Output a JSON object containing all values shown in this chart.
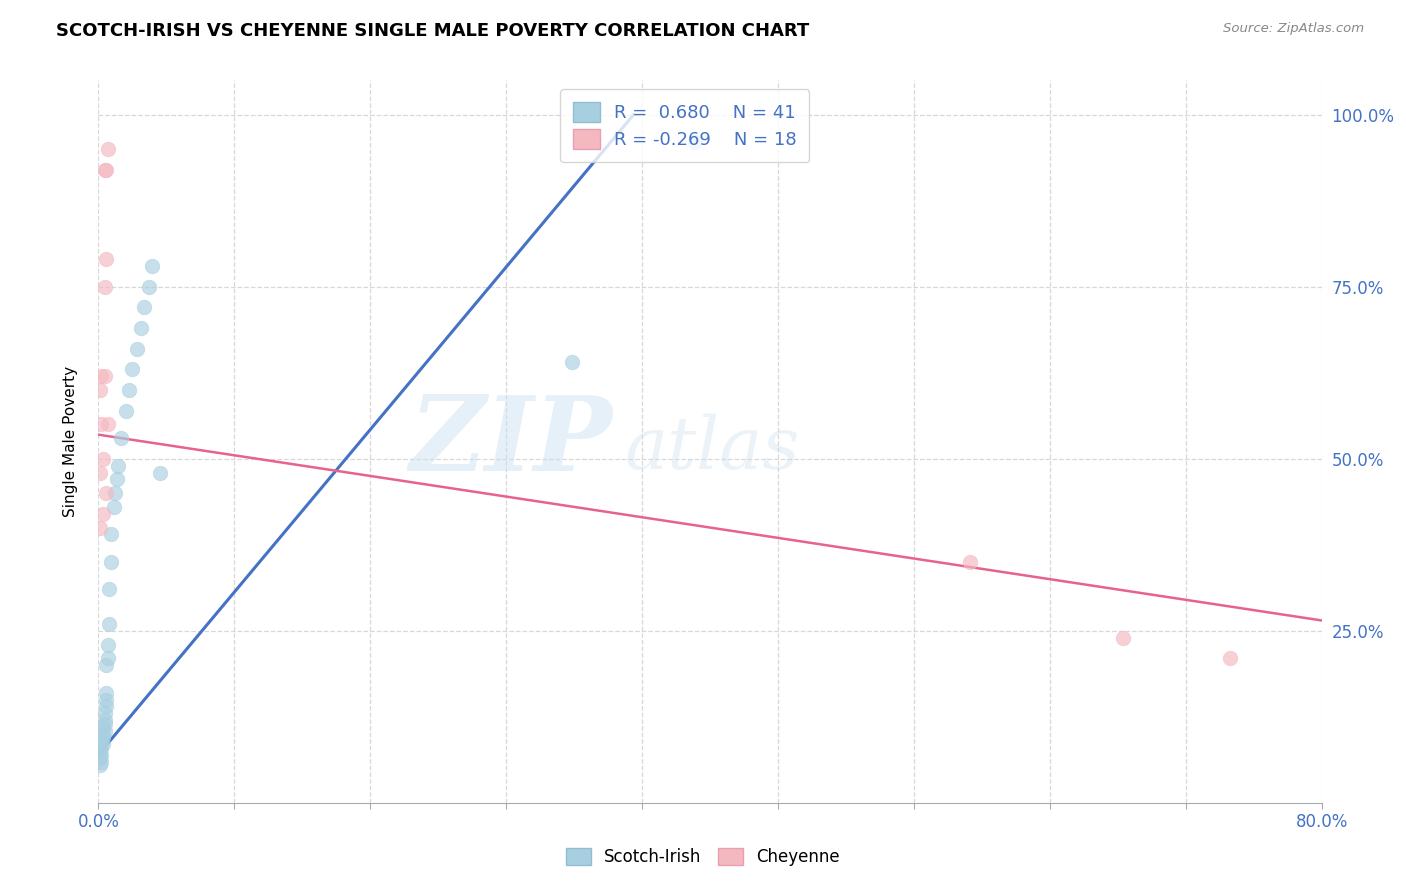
{
  "title": "SCOTCH-IRISH VS CHEYENNE SINGLE MALE POVERTY CORRELATION CHART",
  "source": "Source: ZipAtlas.com",
  "ylabel": "Single Male Poverty",
  "legend_scotch_irish": "Scotch-Irish",
  "legend_cheyenne": "Cheyenne",
  "r_scotch": " 0.680",
  "n_scotch": "41",
  "r_cheyenne": "-0.269",
  "n_cheyenne": "18",
  "scotch_irish_color": "#a8cfe0",
  "cheyenne_color": "#f4b8c1",
  "trend_scotch_color": "#4472c4",
  "trend_cheyenne_color": "#e8638c",
  "watermark_zip": "ZIP",
  "watermark_atlas": "atlas",
  "scotch_x": [
    0.001,
    0.001,
    0.001,
    0.002,
    0.002,
    0.002,
    0.002,
    0.003,
    0.003,
    0.003,
    0.003,
    0.004,
    0.004,
    0.004,
    0.004,
    0.005,
    0.005,
    0.005,
    0.005,
    0.006,
    0.006,
    0.007,
    0.007,
    0.008,
    0.008,
    0.01,
    0.011,
    0.012,
    0.013,
    0.015,
    0.018,
    0.02,
    0.022,
    0.025,
    0.028,
    0.03,
    0.033,
    0.035,
    0.04,
    0.31,
    0.39
  ],
  "scotch_y": [
    0.055,
    0.065,
    0.075,
    0.06,
    0.07,
    0.08,
    0.09,
    0.085,
    0.095,
    0.1,
    0.11,
    0.105,
    0.115,
    0.12,
    0.13,
    0.14,
    0.15,
    0.16,
    0.2,
    0.21,
    0.23,
    0.26,
    0.31,
    0.35,
    0.39,
    0.43,
    0.45,
    0.47,
    0.49,
    0.53,
    0.57,
    0.6,
    0.63,
    0.66,
    0.69,
    0.72,
    0.75,
    0.78,
    0.48,
    0.64,
    0.96
  ],
  "cheyenne_x": [
    0.001,
    0.001,
    0.001,
    0.002,
    0.002,
    0.003,
    0.003,
    0.004,
    0.004,
    0.004,
    0.005,
    0.005,
    0.005,
    0.006,
    0.006,
    0.57,
    0.67,
    0.74
  ],
  "cheyenne_y": [
    0.4,
    0.48,
    0.6,
    0.55,
    0.62,
    0.42,
    0.5,
    0.62,
    0.75,
    0.92,
    0.79,
    0.92,
    0.45,
    0.55,
    0.95,
    0.35,
    0.24,
    0.21
  ],
  "scotch_trend_x0": 0.0,
  "scotch_trend_y0": 0.07,
  "scotch_trend_x1": 0.35,
  "scotch_trend_y1": 1.0,
  "cheyenne_trend_x0": 0.0,
  "cheyenne_trend_y0": 0.535,
  "cheyenne_trend_x1": 0.8,
  "cheyenne_trend_y1": 0.265,
  "xmin": 0.0,
  "xmax": 0.8,
  "ymin": 0.0,
  "ymax": 1.05,
  "ytick_positions": [
    0.25,
    0.5,
    0.75,
    1.0
  ],
  "ytick_labels": [
    "25.0%",
    "50.0%",
    "75.0%",
    "100.0%"
  ],
  "xtick_positions": [
    0.0,
    0.08889,
    0.17778,
    0.26667,
    0.35556,
    0.44444,
    0.53333,
    0.62222,
    0.71111,
    0.8
  ],
  "grid_color": "#d8d8d8",
  "background_color": "#ffffff",
  "axis_label_color": "#4472c4",
  "title_fontsize": 13,
  "tick_fontsize": 12,
  "legend_fontsize": 13,
  "marker_size": 110,
  "marker_alpha": 0.65
}
